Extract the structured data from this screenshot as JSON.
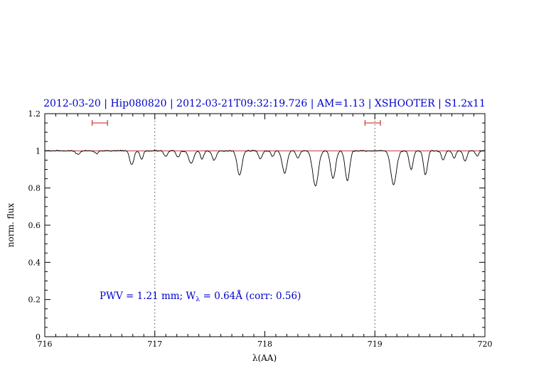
{
  "chart_data": {
    "type": "line",
    "title": "2012-03-20 | Hip080820 | 2012-03-21T09:32:19.726 | AM=1.13 | XSHOOTER | S1.2x11",
    "xlabel": "λ(AA)",
    "ylabel": "norm. flux",
    "xlim": [
      716,
      720
    ],
    "ylim": [
      0,
      1.2
    ],
    "x_major_ticks": [
      716,
      717,
      718,
      719,
      720
    ],
    "x_tick_labels": [
      "716",
      "717",
      "718",
      "719",
      "720"
    ],
    "x_minor_step": 0.1,
    "y_major_ticks": [
      0,
      0.2,
      0.4,
      0.6,
      0.8,
      1.0,
      1.2
    ],
    "y_tick_labels": [
      "0",
      "0.2",
      "0.4",
      "0.6",
      "0.8",
      "1",
      "1.2"
    ],
    "y_minor_step": 0.05,
    "grid": "off",
    "continuum_level": 1.0,
    "dotted_lines_x": [
      717,
      719
    ],
    "telluric_markers": {
      "y": 1.15,
      "half_width": 0.07,
      "centers": [
        716.5,
        718.98
      ]
    },
    "spectrum_model": {
      "continuum": 1.0,
      "noise_amplitude": 0.004,
      "sample_step": 0.006,
      "absorption_lines": [
        {
          "center": 716.3,
          "depth": 0.02,
          "width": 0.018
        },
        {
          "center": 716.47,
          "depth": 0.015,
          "width": 0.015
        },
        {
          "center": 716.79,
          "depth": 0.075,
          "width": 0.018
        },
        {
          "center": 716.88,
          "depth": 0.045,
          "width": 0.014
        },
        {
          "center": 717.1,
          "depth": 0.03,
          "width": 0.016
        },
        {
          "center": 717.21,
          "depth": 0.035,
          "width": 0.016
        },
        {
          "center": 717.33,
          "depth": 0.07,
          "width": 0.022
        },
        {
          "center": 717.43,
          "depth": 0.045,
          "width": 0.015
        },
        {
          "center": 717.54,
          "depth": 0.05,
          "width": 0.018
        },
        {
          "center": 717.77,
          "depth": 0.13,
          "width": 0.022
        },
        {
          "center": 717.96,
          "depth": 0.045,
          "width": 0.016
        },
        {
          "center": 718.07,
          "depth": 0.03,
          "width": 0.014
        },
        {
          "center": 718.18,
          "depth": 0.12,
          "width": 0.022
        },
        {
          "center": 718.3,
          "depth": 0.04,
          "width": 0.015
        },
        {
          "center": 718.46,
          "depth": 0.19,
          "width": 0.026
        },
        {
          "center": 718.62,
          "depth": 0.15,
          "width": 0.022
        },
        {
          "center": 718.75,
          "depth": 0.16,
          "width": 0.02
        },
        {
          "center": 719.17,
          "depth": 0.18,
          "width": 0.026
        },
        {
          "center": 719.33,
          "depth": 0.1,
          "width": 0.018
        },
        {
          "center": 719.46,
          "depth": 0.13,
          "width": 0.018
        },
        {
          "center": 719.62,
          "depth": 0.05,
          "width": 0.016
        },
        {
          "center": 719.72,
          "depth": 0.04,
          "width": 0.014
        },
        {
          "center": 719.82,
          "depth": 0.055,
          "width": 0.016
        },
        {
          "center": 719.93,
          "depth": 0.03,
          "width": 0.014
        }
      ]
    },
    "annotation": {
      "prefix": "PWV = 1.21 mm; W",
      "sub": "λ",
      "suffix": " = 0.64Å (corr: 0.56)"
    },
    "colors": {
      "title": "#0000cd",
      "annotation": "#0000cd",
      "spectrum": "#000000",
      "continuum": "#cc3333",
      "markers": "#cc3333",
      "dotted_lines": "#444444",
      "axes": "#000000"
    },
    "legend": "none"
  }
}
